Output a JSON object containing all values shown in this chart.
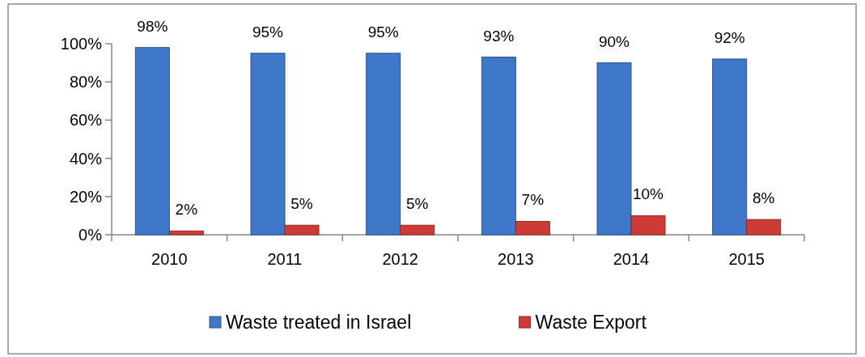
{
  "chart_data": {
    "type": "bar",
    "categories": [
      "2010",
      "2011",
      "2012",
      "2013",
      "2014",
      "2015"
    ],
    "series": [
      {
        "name": "Waste treated in Israel",
        "color": "#3f77c9",
        "values": [
          98,
          95,
          95,
          93,
          90,
          92
        ],
        "value_labels": [
          "98%",
          "95%",
          "95%",
          "93%",
          "90%",
          "92%"
        ]
      },
      {
        "name": "Waste Export",
        "color": "#cc3b35",
        "values": [
          2,
          5,
          5,
          7,
          10,
          8
        ],
        "value_labels": [
          "2%",
          "5%",
          "5%",
          "7%",
          "10%",
          "8%"
        ]
      }
    ],
    "ylim": [
      0,
      100
    ],
    "yticks": [
      {
        "value": 0,
        "label": "0%"
      },
      {
        "value": 20,
        "label": "20%"
      },
      {
        "value": 40,
        "label": "40%"
      },
      {
        "value": 60,
        "label": "60%"
      },
      {
        "value": 80,
        "label": "80%"
      },
      {
        "value": 100,
        "label": "100%"
      }
    ],
    "grid": false,
    "legend": "bottom"
  }
}
